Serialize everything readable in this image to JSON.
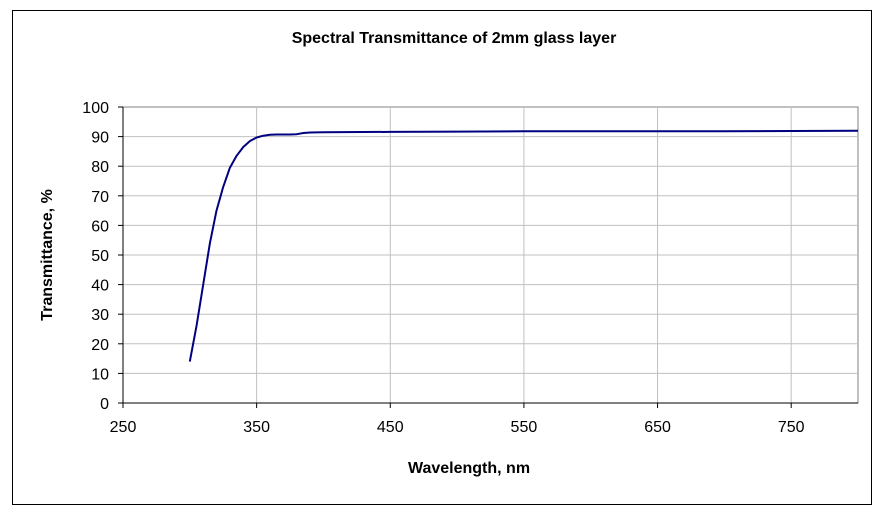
{
  "chart_data": {
    "type": "line",
    "title": "Spectral Transmittance of 2mm glass layer",
    "xlabel": "Wavelength, nm",
    "ylabel": "Transmittance, %",
    "xlim": [
      250,
      800
    ],
    "ylim": [
      0,
      100
    ],
    "x_ticks": [
      250,
      350,
      450,
      550,
      650,
      750
    ],
    "y_ticks": [
      0,
      10,
      20,
      30,
      40,
      50,
      60,
      70,
      80,
      90,
      100
    ],
    "grid": true,
    "legend": "none",
    "series": [
      {
        "color": "#000080",
        "x": [
          300,
          305,
          310,
          315,
          320,
          325,
          330,
          335,
          340,
          345,
          350,
          355,
          360,
          365,
          370,
          375,
          380,
          385,
          390,
          400,
          450,
          500,
          550,
          600,
          650,
          700,
          750,
          800
        ],
        "y": [
          14,
          26,
          40,
          54,
          65,
          73,
          79.5,
          83.5,
          86.5,
          88.5,
          89.7,
          90.3,
          90.6,
          90.7,
          90.7,
          90.7,
          90.8,
          91.2,
          91.4,
          91.5,
          91.6,
          91.7,
          91.8,
          91.8,
          91.8,
          91.8,
          91.9,
          92
        ]
      }
    ]
  }
}
